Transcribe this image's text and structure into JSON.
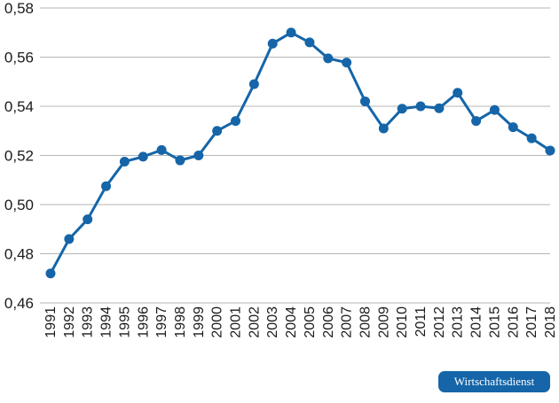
{
  "chart_data": {
    "type": "line",
    "title": "",
    "xlabel": "",
    "ylabel": "",
    "x": [
      "1991",
      "1992",
      "1993",
      "1994",
      "1995",
      "1996",
      "1997",
      "1998",
      "1999",
      "2000",
      "2001",
      "2002",
      "2003",
      "2004",
      "2005",
      "2006",
      "2007",
      "2008",
      "2009",
      "2010",
      "2011",
      "2012",
      "2013",
      "2014",
      "2015",
      "2016",
      "2017",
      "2018"
    ],
    "y_ticks": [
      "0,46",
      "0,48",
      "0,50",
      "0,52",
      "0,54",
      "0,56",
      "0,58"
    ],
    "ylim": [
      0.46,
      0.58
    ],
    "grid": true,
    "legend": "none",
    "series": [
      {
        "color": "#1565a8",
        "values": [
          0.472,
          0.486,
          0.494,
          0.5075,
          0.5175,
          0.5195,
          0.5222,
          0.518,
          0.52,
          0.53,
          0.534,
          0.549,
          0.5655,
          0.57,
          0.566,
          0.5595,
          0.5578,
          0.542,
          0.531,
          0.539,
          0.54,
          0.5392,
          0.5455,
          0.534,
          0.5385,
          0.5315,
          0.527,
          0.522
        ]
      }
    ]
  },
  "badge": {
    "label": "Wirtschaftsdienst",
    "color": "#1565a8"
  }
}
